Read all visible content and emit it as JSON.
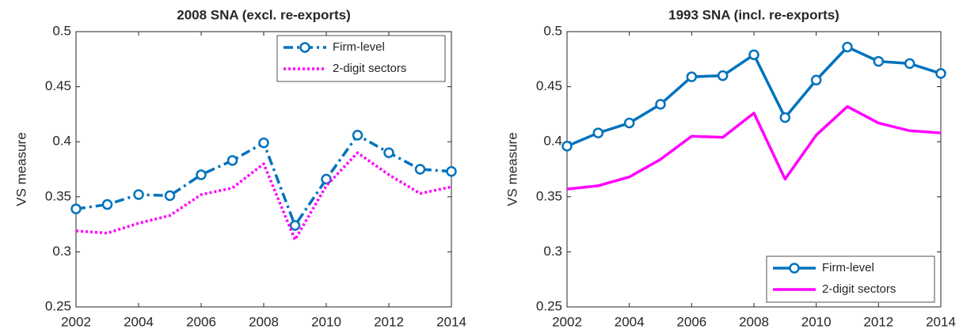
{
  "chart_data": [
    {
      "type": "line",
      "title": "2008 SNA (excl. re-exports)",
      "y_label": "VS measure",
      "x": [
        2002,
        2003,
        2004,
        2005,
        2006,
        2007,
        2008,
        2009,
        2010,
        2011,
        2012,
        2013,
        2014
      ],
      "xlim": [
        2002,
        2014
      ],
      "xticks": [
        2002,
        2004,
        2006,
        2008,
        2010,
        2012,
        2014
      ],
      "ylim": [
        0.25,
        0.5
      ],
      "yticks": [
        0.25,
        0.3,
        0.35,
        0.4,
        0.45,
        0.5
      ],
      "legend": "top-right",
      "series": [
        {
          "name": "Firm-level",
          "color": "#0072bd",
          "dash": "dash-dot",
          "marker": "circle",
          "values": [
            0.339,
            0.343,
            0.352,
            0.351,
            0.37,
            0.383,
            0.399,
            0.324,
            0.366,
            0.406,
            0.39,
            0.375,
            0.373
          ]
        },
        {
          "name": "2-digit sectors",
          "color": "#ff00ff",
          "dash": "dotted",
          "values": [
            0.319,
            0.317,
            0.326,
            0.333,
            0.352,
            0.358,
            0.38,
            0.311,
            0.36,
            0.39,
            0.37,
            0.353,
            0.359
          ]
        }
      ]
    },
    {
      "type": "line",
      "title": "1993 SNA (incl. re-exports)",
      "y_label": "VS measure",
      "x": [
        2002,
        2003,
        2004,
        2005,
        2006,
        2007,
        2008,
        2009,
        2010,
        2011,
        2012,
        2013,
        2014
      ],
      "xlim": [
        2002,
        2014
      ],
      "xticks": [
        2002,
        2004,
        2006,
        2008,
        2010,
        2012,
        2014
      ],
      "ylim": [
        0.25,
        0.5
      ],
      "yticks": [
        0.25,
        0.3,
        0.35,
        0.4,
        0.45,
        0.5
      ],
      "legend": "bottom-right",
      "series": [
        {
          "name": "Firm-level",
          "color": "#0072bd",
          "dash": "solid",
          "marker": "circle",
          "values": [
            0.396,
            0.408,
            0.417,
            0.434,
            0.459,
            0.46,
            0.479,
            0.422,
            0.456,
            0.486,
            0.473,
            0.471,
            0.462
          ]
        },
        {
          "name": "2-digit sectors",
          "color": "#ff00ff",
          "dash": "solid",
          "values": [
            0.357,
            0.36,
            0.368,
            0.384,
            0.405,
            0.404,
            0.426,
            0.366,
            0.406,
            0.432,
            0.417,
            0.41,
            0.408
          ]
        }
      ]
    }
  ]
}
